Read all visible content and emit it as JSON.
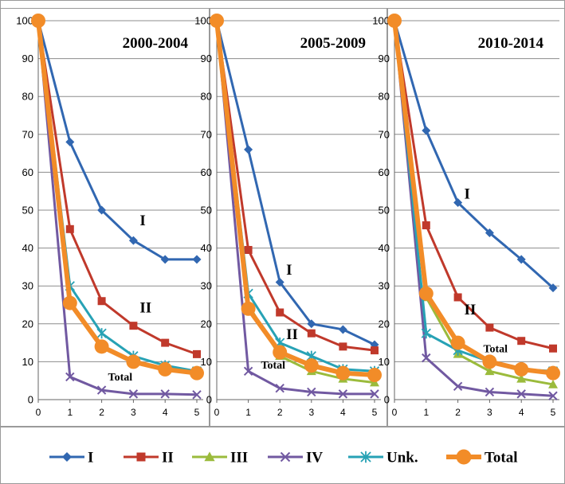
{
  "chart_data": {
    "type": "line",
    "x": [
      0,
      1,
      2,
      3,
      4,
      5
    ],
    "ylim": [
      0,
      100
    ],
    "yticks": [
      0,
      10,
      20,
      30,
      40,
      50,
      60,
      70,
      80,
      90,
      100
    ],
    "xlim": [
      0,
      5
    ],
    "grid": true,
    "legend_position": "bottom",
    "legend": [
      "I",
      "II",
      "III",
      "IV",
      "Unk.",
      "Total"
    ],
    "colors": {
      "I": "#3167b1",
      "II": "#c0392b",
      "III": "#9bbb3c",
      "IV": "#7159a1",
      "Unk.": "#27a2b5",
      "Total": "#f28c28"
    },
    "markers": {
      "I": "diamond",
      "II": "square",
      "III": "triangle",
      "IV": "x",
      "Unk.": "asterisk",
      "Total": "circle"
    },
    "panels": [
      {
        "title": "2000-2004",
        "series": [
          {
            "name": "I",
            "values": [
              100,
              68,
              50,
              42,
              37,
              37
            ]
          },
          {
            "name": "II",
            "values": [
              100,
              45,
              26,
              19.5,
              15,
              12
            ]
          },
          {
            "name": "III",
            "values": [
              100,
              26,
              14,
              10,
              8,
              7.5
            ]
          },
          {
            "name": "IV",
            "values": [
              100,
              6,
              2.5,
              1.5,
              1.5,
              1.3
            ]
          },
          {
            "name": "Unk.",
            "values": [
              100,
              30,
              17.5,
              11.5,
              9,
              7.5
            ]
          },
          {
            "name": "Total",
            "values": [
              100,
              25.5,
              14,
              10,
              8,
              7
            ]
          }
        ],
        "annotations": [
          {
            "text": "I",
            "x": 3.2,
            "y": 46,
            "size": 19
          },
          {
            "text": "II",
            "x": 3.2,
            "y": 23,
            "size": 19
          },
          {
            "text": "Total",
            "x": 2.2,
            "y": 5,
            "size": 14
          }
        ]
      },
      {
        "title": "2005-2009",
        "series": [
          {
            "name": "I",
            "values": [
              100,
              66,
              31,
              20,
              18.5,
              14.5
            ]
          },
          {
            "name": "II",
            "values": [
              100,
              39.5,
              23,
              17.5,
              14,
              13
            ]
          },
          {
            "name": "III",
            "values": [
              100,
              25,
              11.5,
              7.5,
              5.5,
              4.5
            ]
          },
          {
            "name": "IV",
            "values": [
              100,
              7.5,
              3,
              2,
              1.5,
              1.5
            ]
          },
          {
            "name": "Unk.",
            "values": [
              100,
              28,
              15,
              11.5,
              8,
              7.5
            ]
          },
          {
            "name": "Total",
            "values": [
              100,
              24,
              12.5,
              9,
              7,
              6.5
            ]
          }
        ],
        "annotations": [
          {
            "text": "I",
            "x": 2.2,
            "y": 33,
            "size": 19
          },
          {
            "text": "II",
            "x": 2.2,
            "y": 16,
            "size": 19
          },
          {
            "text": "Total",
            "x": 1.4,
            "y": 8.2,
            "size": 14
          }
        ]
      },
      {
        "title": "2010-2014",
        "series": [
          {
            "name": "I",
            "values": [
              100,
              71,
              52,
              44,
              37,
              29.5
            ]
          },
          {
            "name": "II",
            "values": [
              100,
              46,
              27,
              19,
              15.5,
              13.5
            ]
          },
          {
            "name": "III",
            "values": [
              100,
              27,
              12,
              7.5,
              5.5,
              4
            ]
          },
          {
            "name": "IV",
            "values": [
              100,
              11,
              3.5,
              2,
              1.5,
              1
            ]
          },
          {
            "name": "Unk.",
            "values": [
              100,
              17.5,
              13,
              10,
              8,
              7.5
            ]
          },
          {
            "name": "Total",
            "values": [
              100,
              28,
              15,
              10,
              8,
              7
            ]
          }
        ],
        "annotations": [
          {
            "text": "I",
            "x": 2.2,
            "y": 53,
            "size": 19
          },
          {
            "text": "II",
            "x": 2.2,
            "y": 22.5,
            "size": 19
          },
          {
            "text": "Total",
            "x": 2.8,
            "y": 12.5,
            "size": 14
          }
        ]
      }
    ]
  }
}
